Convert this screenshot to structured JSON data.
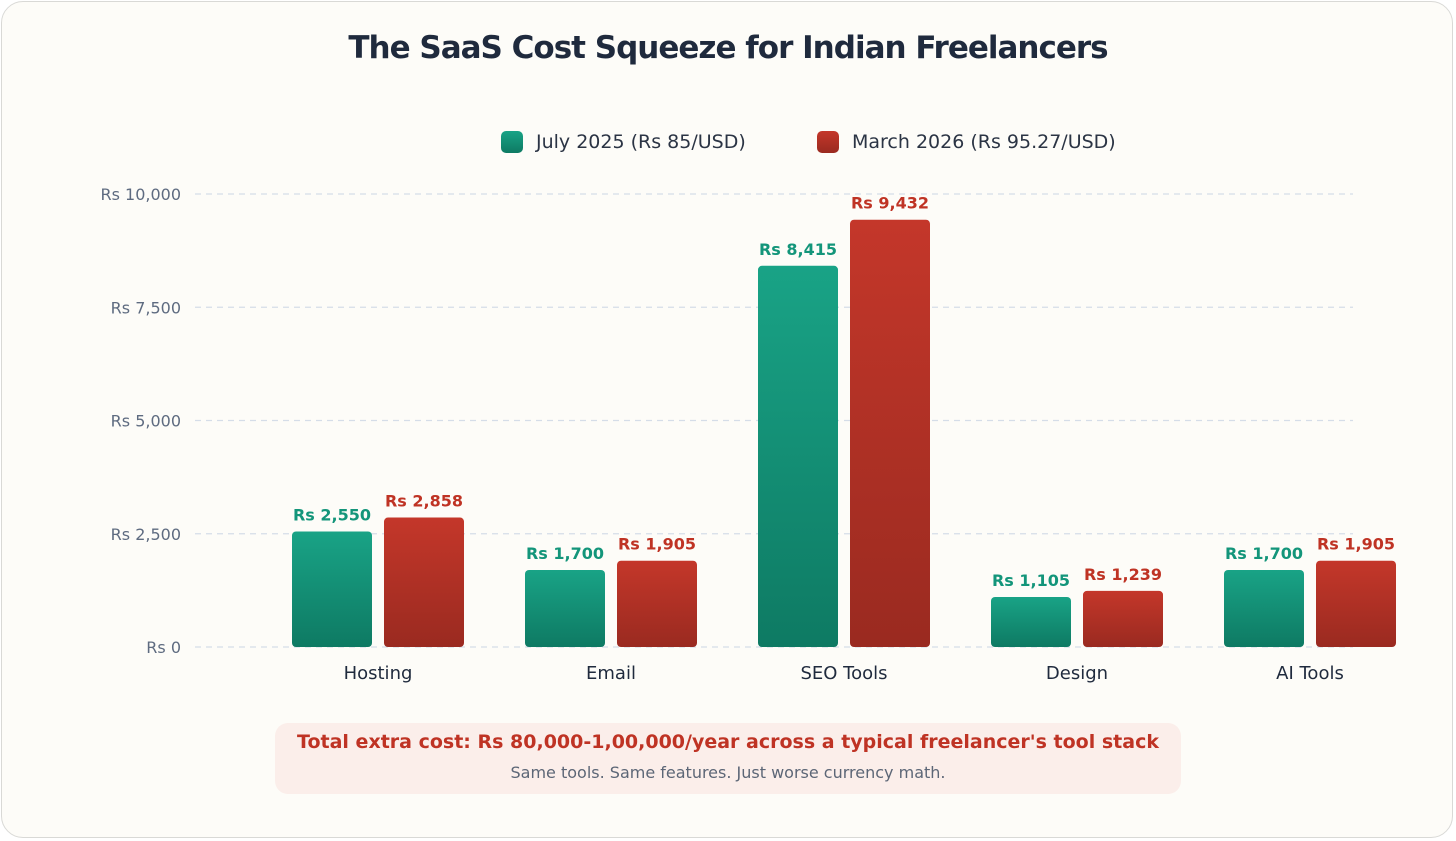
{
  "colors": {
    "series_a_top": "#19a386",
    "series_a_bottom": "#0e7a63",
    "series_b_top": "#c4372a",
    "series_b_bottom": "#9a2a20",
    "label_a": "#13957a",
    "label_b": "#bf3324",
    "grid": "#d5dde8",
    "tick_text": "#5e6b80",
    "category_text": "#1f2a3d"
  },
  "chart_data": {
    "type": "bar",
    "title": "The SaaS Cost Squeeze for Indian Freelancers",
    "categories": [
      "Hosting",
      "Email",
      "SEO Tools",
      "Design",
      "AI Tools"
    ],
    "series": [
      {
        "name": "July 2025 (Rs 85/USD)",
        "values": [
          2550,
          1700,
          8415,
          1105,
          1700
        ],
        "labels": [
          "Rs 2,550",
          "Rs 1,700",
          "Rs 8,415",
          "Rs 1,105",
          "Rs 1,700"
        ]
      },
      {
        "name": "March 2026 (Rs 95.27/USD)",
        "values": [
          2858,
          1905,
          9432,
          1239,
          1905
        ],
        "labels": [
          "Rs 2,858",
          "Rs 1,905",
          "Rs 9,432",
          "Rs 1,239",
          "Rs 1,905"
        ]
      }
    ],
    "ylim": [
      0,
      10000
    ],
    "yticks": [
      0,
      2500,
      5000,
      7500,
      10000
    ],
    "ytick_labels": [
      "Rs 0",
      "Rs 2,500",
      "Rs 5,000",
      "Rs 7,500",
      "Rs 10,000"
    ],
    "xlabel": "",
    "ylabel": "",
    "grid": true,
    "legend_position": "top-center"
  },
  "banner": {
    "headline": "Total extra cost: Rs 80,000-1,00,000/year across a typical freelancer's tool stack",
    "subtext": "Same tools. Same features. Just worse currency math."
  }
}
